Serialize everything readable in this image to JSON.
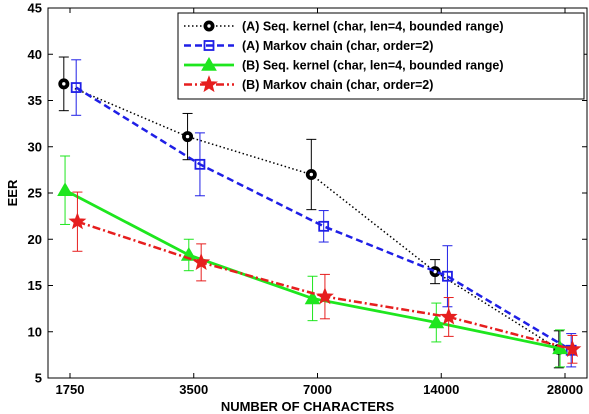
{
  "chart_data": {
    "type": "line",
    "xlabel": "NUMBER OF CHARACTERS",
    "ylabel": "EER",
    "categories": [
      "1750",
      "3500",
      "7000",
      "14000",
      "28000"
    ],
    "ylim": [
      5,
      45
    ],
    "yticks": [
      5,
      10,
      15,
      20,
      25,
      30,
      35,
      40,
      45
    ],
    "grid": false,
    "legend_position": "top-right",
    "series": [
      {
        "name": "(A) Seq. kernel (char, len=4, bounded range)",
        "color": "#000000",
        "line_style": "dotted",
        "marker": "circle",
        "x_offsets": [
          -0.05,
          -0.05,
          -0.05,
          -0.05,
          -0.05
        ],
        "values": [
          36.8,
          31.1,
          27.0,
          16.5,
          8.1
        ],
        "error": [
          2.9,
          2.5,
          3.8,
          1.3,
          2.0
        ]
      },
      {
        "name": "(A) Markov chain (char, order=2)",
        "color": "#1f1fe6",
        "line_style": "dashed",
        "marker": "square",
        "x_offsets": [
          0.05,
          0.05,
          0.05,
          0.05,
          0.05
        ],
        "values": [
          36.4,
          28.1,
          21.4,
          16.0,
          8.0
        ],
        "error": [
          3.0,
          3.4,
          1.7,
          3.3,
          1.8
        ]
      },
      {
        "name": "(B) Seq. kernel (char, len=4, bounded range)",
        "color": "#1ee61e",
        "line_style": "solid",
        "marker": "triangle",
        "x_offsets": [
          -0.04,
          -0.04,
          -0.04,
          -0.04,
          -0.04
        ],
        "values": [
          25.3,
          18.3,
          13.6,
          11.0,
          8.2
        ],
        "error": [
          3.7,
          1.7,
          2.4,
          2.1,
          2.0
        ]
      },
      {
        "name": "(B) Markov chain (char, order=2)",
        "color": "#e61e1e",
        "line_style": "dashdot",
        "marker": "star",
        "x_offsets": [
          0.06,
          0.06,
          0.06,
          0.06,
          0.06
        ],
        "values": [
          21.9,
          17.5,
          13.8,
          11.6,
          8.1
        ],
        "error": [
          3.2,
          2.0,
          2.4,
          2.1,
          1.5
        ]
      }
    ]
  }
}
